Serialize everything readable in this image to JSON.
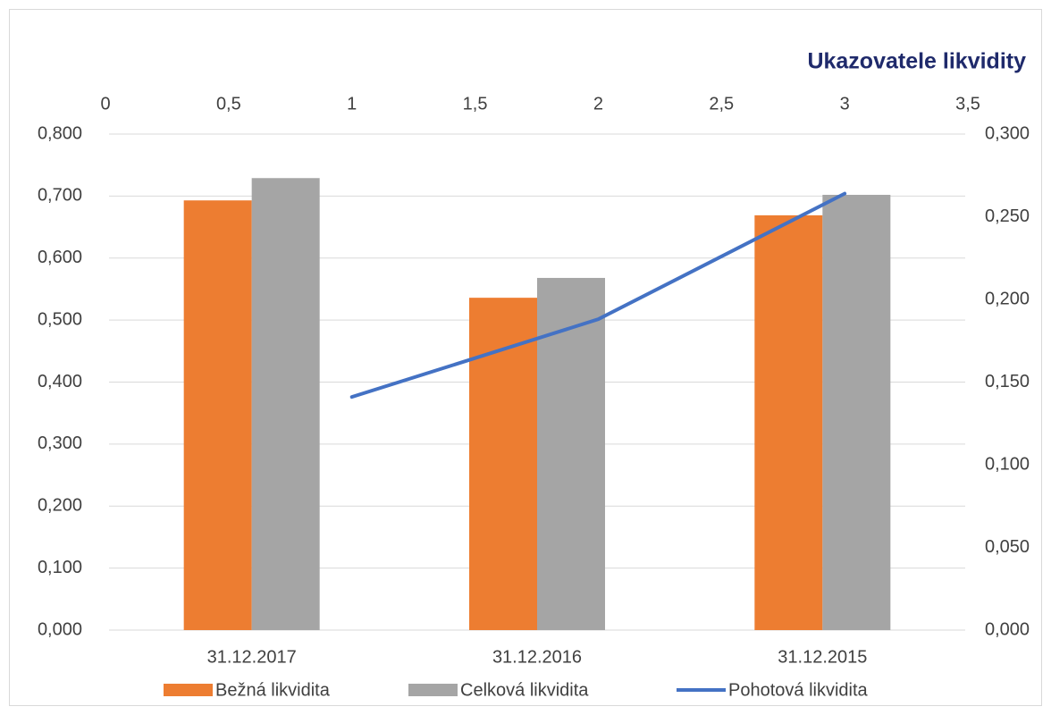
{
  "chart_data": {
    "type": "bar",
    "title": "Ukazovatele likvidity",
    "categories": [
      "31.12.2017",
      "31.12.2016",
      "31.12.2015"
    ],
    "series": [
      {
        "name": "Bežná likvidita",
        "color": "#ed7d31",
        "values": [
          0.693,
          0.536,
          0.669
        ]
      },
      {
        "name": "Celková likvidita",
        "color": "#a5a5a5",
        "values": [
          0.729,
          0.568,
          0.702
        ]
      },
      {
        "name": "Pohotová likvidita",
        "color": "#4472c4",
        "type": "line",
        "axis": "y2",
        "x": [
          1,
          2,
          3
        ],
        "values": [
          0.141,
          0.188,
          0.264
        ]
      }
    ],
    "ylim": [
      0,
      0.8
    ],
    "yticks": [
      {
        "value": 0,
        "label": "0,000"
      },
      {
        "value": 0.1,
        "label": "0,100"
      },
      {
        "value": 0.2,
        "label": "0,200"
      },
      {
        "value": 0.3,
        "label": "0,300"
      },
      {
        "value": 0.4,
        "label": "0,400"
      },
      {
        "value": 0.5,
        "label": "0,500"
      },
      {
        "value": 0.6,
        "label": "0,600"
      },
      {
        "value": 0.7,
        "label": "0,700"
      },
      {
        "value": 0.8,
        "label": "0,800"
      }
    ],
    "y2lim": [
      0,
      0.3
    ],
    "y2ticks": [
      {
        "value": 0,
        "label": "0,000"
      },
      {
        "value": 0.05,
        "label": "0,050"
      },
      {
        "value": 0.1,
        "label": "0,100"
      },
      {
        "value": 0.15,
        "label": "0,150"
      },
      {
        "value": 0.2,
        "label": "0,200"
      },
      {
        "value": 0.25,
        "label": "0,250"
      },
      {
        "value": 0.3,
        "label": "0,300"
      }
    ],
    "x2lim": [
      0,
      3.5
    ],
    "x2ticks": [
      0,
      {
        "value": 0.5,
        "label": "0,5"
      },
      1,
      {
        "value": 1.5,
        "label": "1,5"
      },
      2,
      {
        "value": 2.5,
        "label": "2,5"
      },
      3,
      {
        "value": 3.5,
        "label": "3,5"
      }
    ],
    "grid": true
  }
}
